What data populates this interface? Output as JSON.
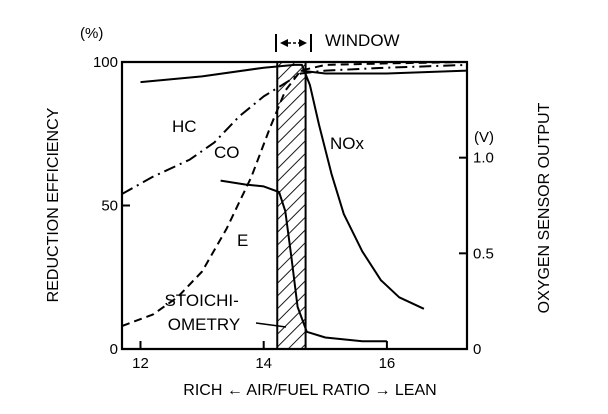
{
  "chart_data": {
    "type": "line",
    "left_axis": {
      "label": "REDUCTION EFFICIENCY",
      "unit": "(%)",
      "range": [
        0,
        100
      ],
      "ticks": [
        {
          "value": 0,
          "label": "0"
        },
        {
          "value": 50,
          "label": "50"
        },
        {
          "value": 100,
          "label": "100"
        }
      ]
    },
    "right_axis": {
      "label": "OXYGEN SENSOR OUTPUT",
      "unit": "(V)",
      "range": [
        0,
        1.5
      ],
      "ticks": [
        {
          "value": 0,
          "label": "0"
        },
        {
          "value": 0.5,
          "label": "0.5"
        },
        {
          "value": 1.0,
          "label": "1.0"
        }
      ]
    },
    "x_axis": {
      "label_left": "RICH",
      "label_center": "AIR/FUEL RATIO",
      "label_right": "LEAN",
      "arrow_left": "←",
      "arrow_right": "→",
      "range": [
        11.7,
        17.3
      ],
      "ticks": [
        {
          "value": 12,
          "label": "12"
        },
        {
          "value": 14,
          "label": "14"
        },
        {
          "value": 16,
          "label": "16"
        }
      ]
    },
    "window": {
      "label": "WINDOW",
      "x_range": [
        14.22,
        14.68
      ]
    },
    "stoichiometry_label": [
      "STOICHI-",
      "OMETRY"
    ],
    "series": [
      {
        "name": "HC",
        "axis": "left",
        "style": "dash-dot",
        "points": [
          [
            11.7,
            54
          ],
          [
            12.2,
            60
          ],
          [
            12.8,
            66
          ],
          [
            13.2,
            72
          ],
          [
            13.6,
            81
          ],
          [
            14.0,
            88
          ],
          [
            14.3,
            92
          ],
          [
            14.6,
            96
          ],
          [
            15.0,
            97
          ],
          [
            16.0,
            98
          ],
          [
            17.3,
            99
          ]
        ]
      },
      {
        "name": "CO",
        "axis": "left",
        "style": "dashed",
        "points": [
          [
            11.7,
            8
          ],
          [
            12.2,
            12
          ],
          [
            12.6,
            18
          ],
          [
            13.0,
            27
          ],
          [
            13.4,
            42
          ],
          [
            13.8,
            60
          ],
          [
            14.1,
            77
          ],
          [
            14.35,
            90
          ],
          [
            14.6,
            97
          ],
          [
            15.0,
            99
          ],
          [
            16.0,
            99.5
          ],
          [
            17.3,
            100
          ]
        ]
      },
      {
        "name": "NOx",
        "axis": "left",
        "style": "solid",
        "points": [
          [
            12.0,
            93
          ],
          [
            13.0,
            95
          ],
          [
            14.0,
            98
          ],
          [
            14.5,
            99
          ],
          [
            14.62,
            99
          ],
          [
            14.75,
            92
          ],
          [
            14.9,
            78
          ],
          [
            15.1,
            61
          ],
          [
            15.3,
            47
          ],
          [
            15.6,
            34
          ],
          [
            15.9,
            24
          ],
          [
            16.2,
            18
          ],
          [
            16.6,
            14
          ]
        ]
      },
      {
        "name": "",
        "axis": "left",
        "style": "solid",
        "points": [
          [
            14.6,
            97
          ],
          [
            15.0,
            96
          ],
          [
            16.0,
            96
          ],
          [
            17.3,
            97
          ]
        ]
      },
      {
        "name": "E",
        "axis": "right",
        "style": "solid",
        "points": [
          [
            13.3,
            0.88
          ],
          [
            13.7,
            0.86
          ],
          [
            14.0,
            0.85
          ],
          [
            14.25,
            0.82
          ],
          [
            14.35,
            0.72
          ],
          [
            14.45,
            0.48
          ],
          [
            14.55,
            0.22
          ],
          [
            14.7,
            0.09
          ],
          [
            15.0,
            0.06
          ],
          [
            15.6,
            0.04
          ],
          [
            16.0,
            0.04
          ]
        ]
      }
    ],
    "curve_labels": [
      "HC",
      "CO",
      "NOx",
      "E"
    ]
  }
}
